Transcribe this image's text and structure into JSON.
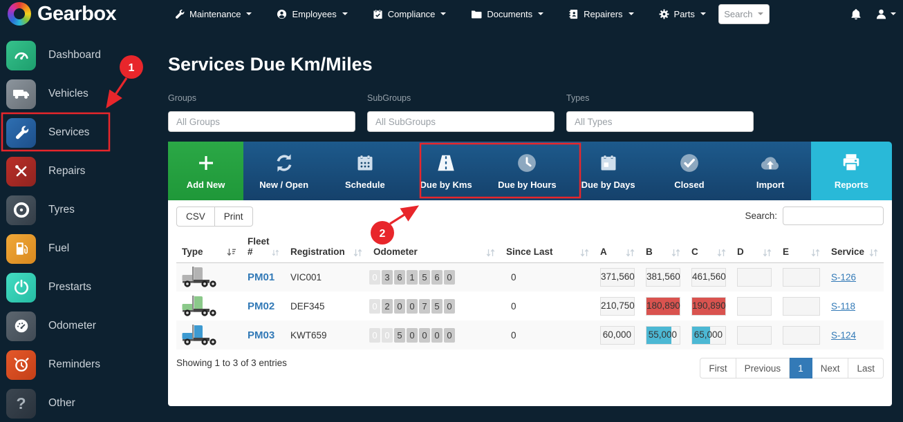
{
  "navbar": {
    "brand": "Gearbox",
    "items": [
      {
        "label": "Maintenance",
        "icon": "wrench-icon"
      },
      {
        "label": "Employees",
        "icon": "user-circle-icon"
      },
      {
        "label": "Compliance",
        "icon": "calendar-icon"
      },
      {
        "label": "Documents",
        "icon": "folder-icon"
      },
      {
        "label": "Repairers",
        "icon": "address-book-icon"
      },
      {
        "label": "Parts",
        "icon": "gear-icon"
      }
    ],
    "search_label": "Search"
  },
  "sidebar": {
    "items": [
      {
        "label": "Dashboard",
        "icon": "gauge-icon"
      },
      {
        "label": "Vehicles",
        "icon": "truck-icon"
      },
      {
        "label": "Services",
        "icon": "wrench-icon"
      },
      {
        "label": "Repairs",
        "icon": "crossed-tools-icon"
      },
      {
        "label": "Tyres",
        "icon": "tyre-icon"
      },
      {
        "label": "Fuel",
        "icon": "fuel-pump-icon"
      },
      {
        "label": "Prestarts",
        "icon": "power-icon"
      },
      {
        "label": "Odometer",
        "icon": "gauge-icon"
      },
      {
        "label": "Reminders",
        "icon": "alarm-clock-icon"
      },
      {
        "label": "Other",
        "icon": "question-mark-icon"
      }
    ]
  },
  "page": {
    "title": "Services Due Km/Miles"
  },
  "filters": [
    {
      "label": "Groups",
      "placeholder": "All Groups"
    },
    {
      "label": "SubGroups",
      "placeholder": "All SubGroups"
    },
    {
      "label": "Types",
      "placeholder": "All Types"
    }
  ],
  "toolbar": {
    "buttons": [
      {
        "label": "Add New",
        "icon": "plus-icon",
        "style": "green"
      },
      {
        "label": "New / Open",
        "icon": "refresh-icon",
        "style": "blue"
      },
      {
        "label": "Schedule",
        "icon": "calendar-icon",
        "style": "blue"
      },
      {
        "label": "Due by Kms",
        "icon": "road-icon",
        "style": "blue"
      },
      {
        "label": "Due by Hours",
        "icon": "clock-icon",
        "style": "blue"
      },
      {
        "label": "Due by Days",
        "icon": "calendar-day-icon",
        "style": "blue"
      },
      {
        "label": "Closed",
        "icon": "check-circle-icon",
        "style": "blue"
      },
      {
        "label": "Import",
        "icon": "cloud-upload-icon",
        "style": "blue"
      },
      {
        "label": "Reports",
        "icon": "printer-icon",
        "style": "teal-active"
      }
    ]
  },
  "table": {
    "export_buttons": [
      "CSV",
      "Print"
    ],
    "search_label": "Search:",
    "columns": [
      "Type",
      "Fleet #",
      "Registration",
      "Odometer",
      "Since Last",
      "A",
      "B",
      "C",
      "D",
      "E",
      "Service"
    ],
    "rows": [
      {
        "truck_color": "#b3b3b3",
        "fleet": "PM01",
        "registration": "VIC001",
        "odometer": {
          "digits": "0361560",
          "lead_zeros": 1
        },
        "since_last": "0",
        "cells": [
          {
            "value": "371,560"
          },
          {
            "value": "381,560"
          },
          {
            "value": "461,560"
          },
          {
            "value": ""
          },
          {
            "value": ""
          }
        ],
        "service": "S-126"
      },
      {
        "truck_color": "#8bc98a",
        "fleet": "PM02",
        "registration": "DEF345",
        "odometer": {
          "digits": "0200750",
          "lead_zeros": 1
        },
        "since_last": "0",
        "cells": [
          {
            "value": "210,750"
          },
          {
            "value": "180,890",
            "highlight": "red",
            "fill": 100
          },
          {
            "value": "190,890",
            "highlight": "red",
            "fill": 100
          },
          {
            "value": ""
          },
          {
            "value": ""
          }
        ],
        "service": "S-118"
      },
      {
        "truck_color": "#3d9ad1",
        "fleet": "PM03",
        "registration": "KWT659",
        "odometer": {
          "digits": "0050000",
          "lead_zeros": 2
        },
        "since_last": "0",
        "cells": [
          {
            "value": "60,000"
          },
          {
            "value": "55,000",
            "highlight": "teal",
            "fill": 76
          },
          {
            "value": "65,000",
            "highlight": "teal",
            "fill": 55
          },
          {
            "value": ""
          },
          {
            "value": ""
          }
        ],
        "service": "S-124"
      }
    ],
    "footer_info": "Showing 1 to 3 of 3 entries",
    "pagination": {
      "buttons": [
        "First",
        "Previous",
        "1",
        "Next",
        "Last"
      ],
      "active_index": 2
    }
  },
  "annotations": {
    "step1": "1",
    "step2": "2"
  },
  "colors": {
    "accent_red": "#e8262b",
    "status_red": "#d9534f",
    "status_teal": "#4cb8d4",
    "brand_teal": "#29b9d8",
    "add_green": "#2ba846",
    "link_blue": "#337ab7"
  }
}
